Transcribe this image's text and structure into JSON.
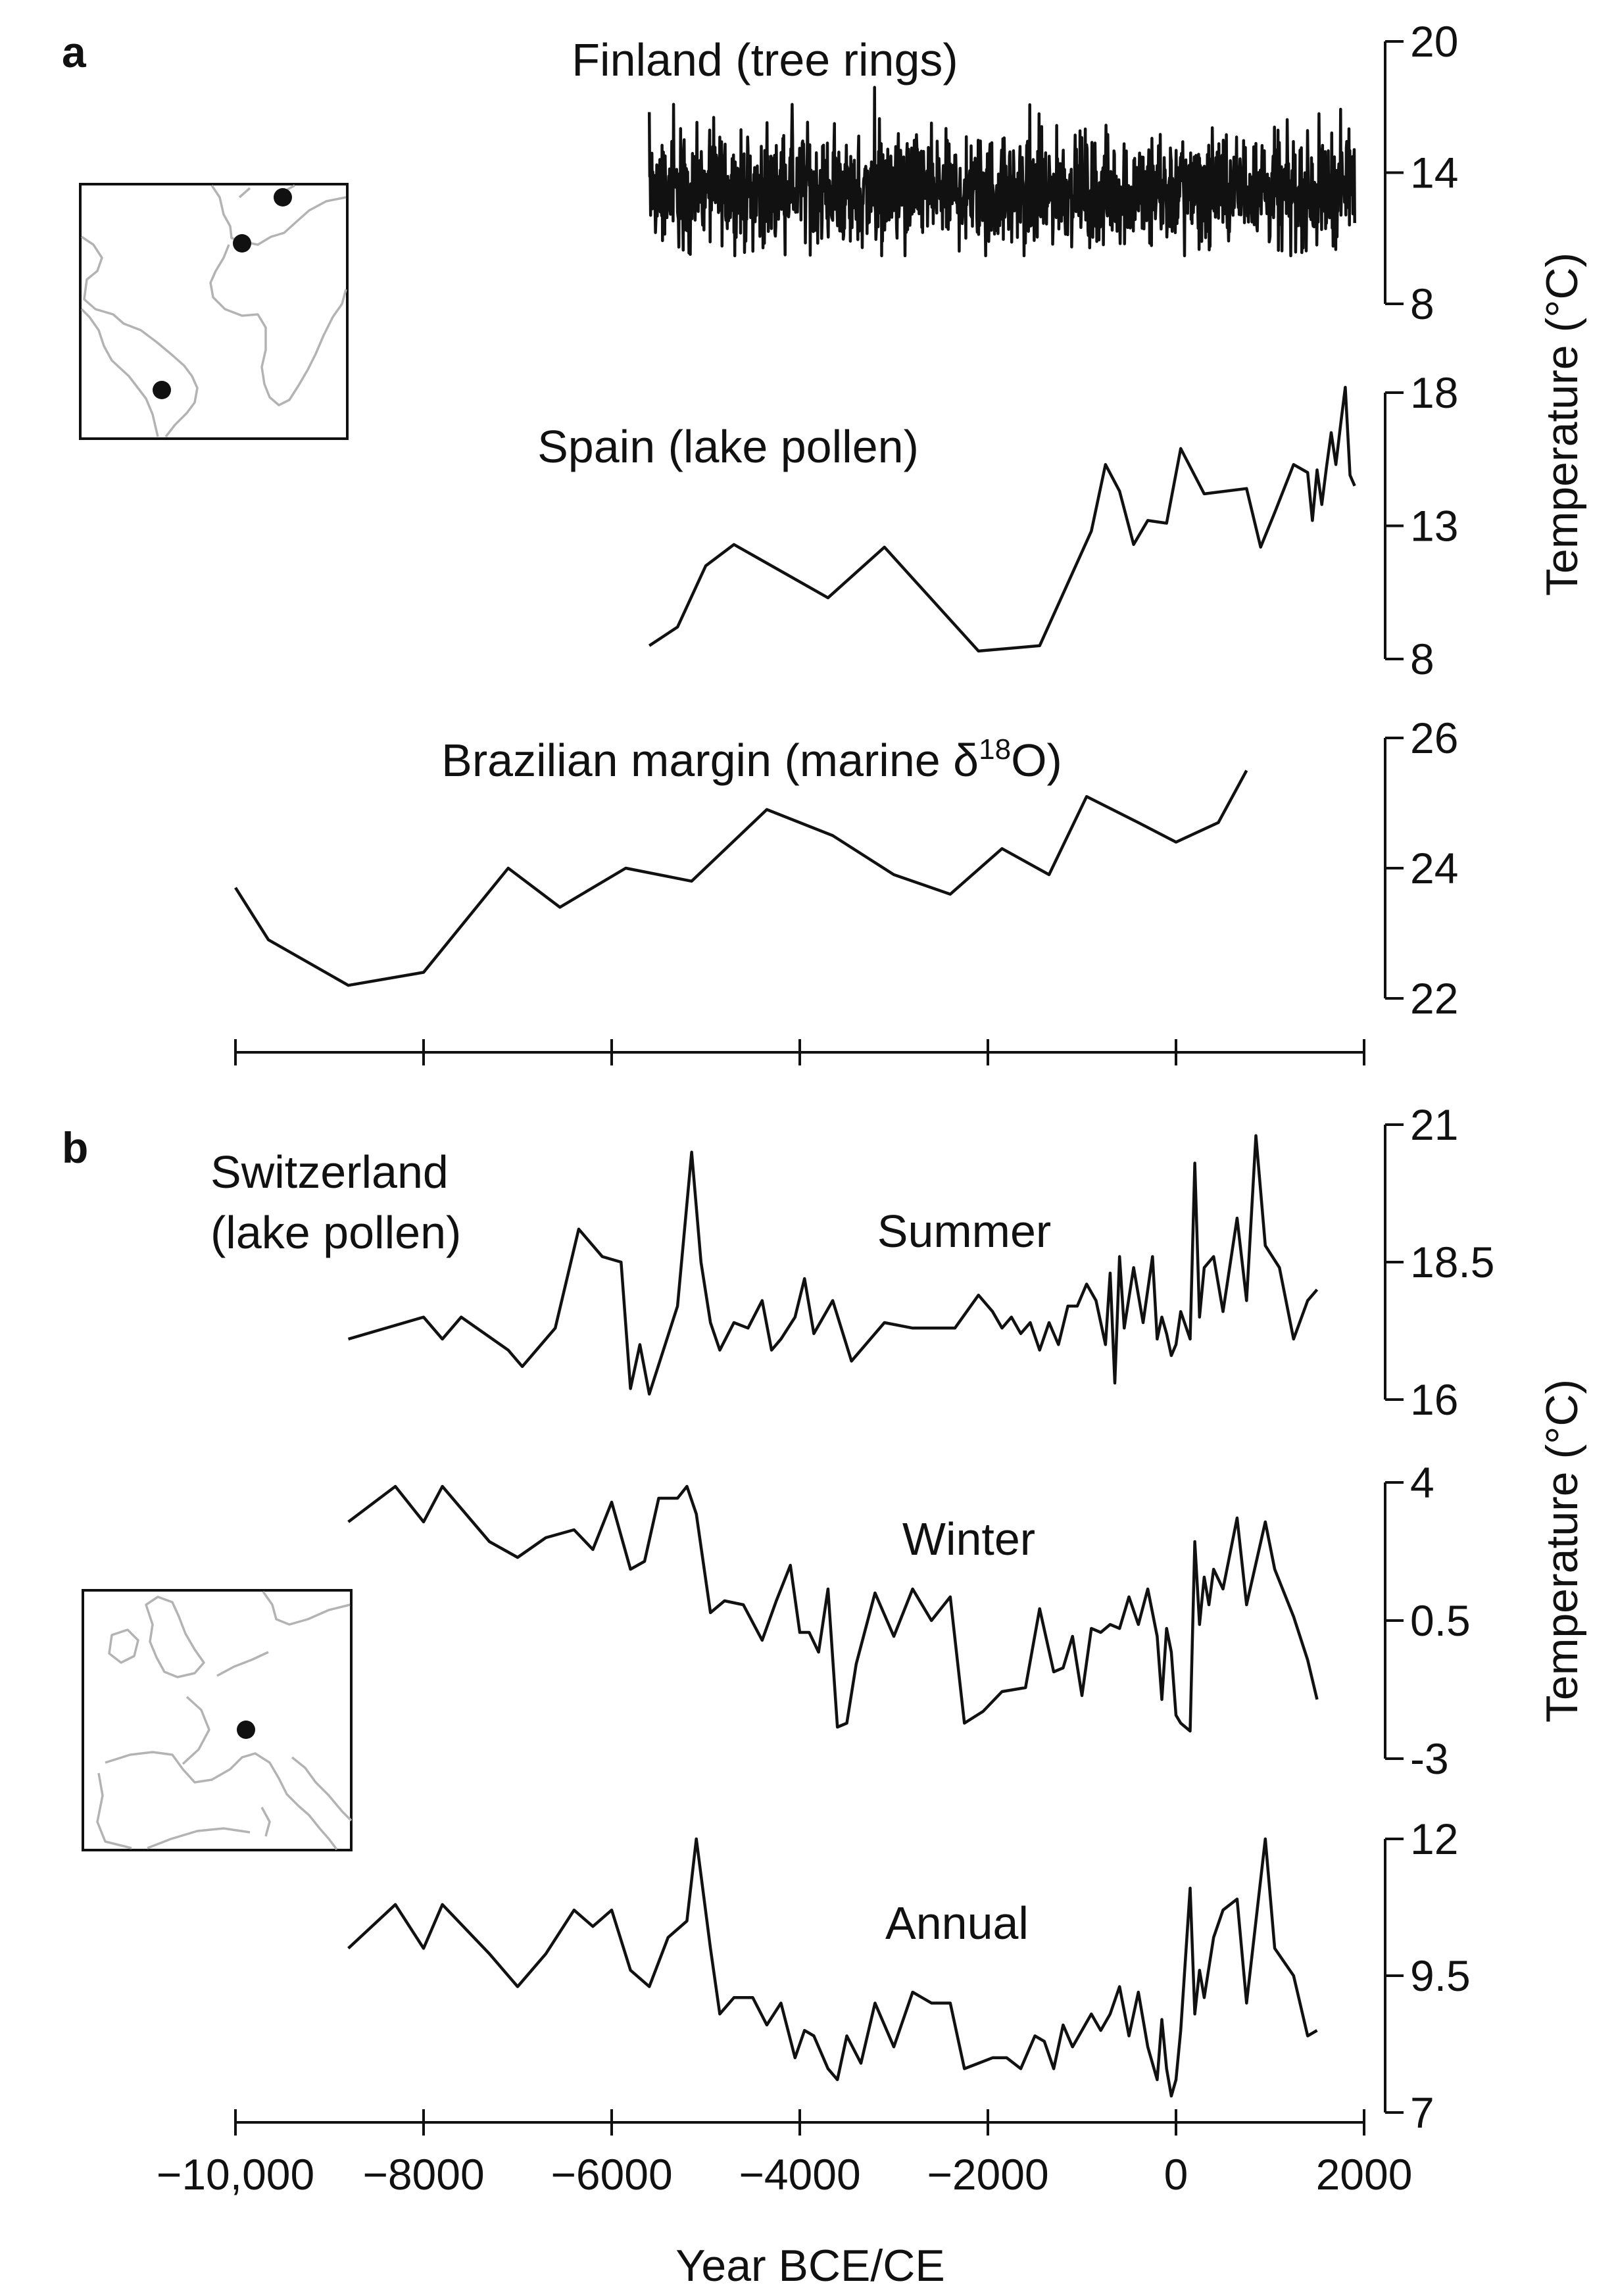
{
  "chart_data": {
    "type": "line",
    "x_axis": {
      "label": "Year BCE/CE",
      "range": [
        -10000,
        2000
      ],
      "ticks": [
        -10000,
        -8000,
        -6000,
        -4000,
        -2000,
        0,
        2000
      ],
      "tick_labels": [
        "−10,000",
        "−8000",
        "−6000",
        "−4000",
        "−2000",
        "0",
        "2000"
      ]
    },
    "panels": [
      {
        "letter": "a",
        "y_axis_label": "Temperature (°C)",
        "map": "South Atlantic / Europe / Africa locator map with three site markers",
        "series": [
          {
            "name": "Finland (tree rings)",
            "ylim": [
              8,
              20
            ],
            "ticks": [
              8,
              14,
              20
            ],
            "style": "high-frequency annual series, roughly 10.5 to 17.5 °C",
            "x": [
              -5600,
              -5200,
              -4800,
              -4400,
              -4000,
              -3600,
              -3200,
              -2800,
              -2400,
              -2000,
              -1600,
              -1200,
              -800,
              -400,
              0,
              400,
              800,
              1200,
              1600,
              1900
            ],
            "values": [
              13.2,
              13.0,
              13.3,
              13.1,
              13.4,
              13.2,
              13.0,
              13.3,
              13.1,
              13.2,
              13.0,
              13.3,
              13.2,
              13.1,
              13.4,
              13.2,
              13.3,
              13.1,
              13.2,
              13.3
            ]
          },
          {
            "name": "Spain (lake pollen)",
            "ylim": [
              8,
              18
            ],
            "ticks": [
              8,
              13,
              18
            ],
            "x": [
              -5600,
              -5300,
              -5000,
              -4700,
              -3700,
              -3100,
              -2100,
              -1450,
              -900,
              -750,
              -600,
              -450,
              -300,
              -100,
              50,
              300,
              750,
              900,
              1050,
              1250,
              1400,
              1450,
              1500,
              1550,
              1600,
              1650,
              1700,
              1750,
              1800,
              1850,
              1900
            ],
            "values": [
              8.5,
              9.2,
              11.5,
              12.3,
              10.3,
              12.2,
              8.3,
              8.5,
              12.8,
              15.3,
              14.3,
              12.3,
              13.2,
              13.1,
              15.9,
              14.2,
              14.4,
              12.2,
              13.5,
              15.3,
              15.0,
              13.2,
              15.1,
              13.8,
              15.2,
              16.5,
              15.3,
              16.8,
              18.2,
              14.9,
              14.5
            ]
          },
          {
            "name": "Brazilian margin (marine δ",
            "name_sup": "18",
            "name_end": "O)",
            "ylim": [
              22,
              26
            ],
            "ticks": [
              22,
              24,
              26
            ],
            "x": [
              -10000,
              -9650,
              -8800,
              -8000,
              -7100,
              -6550,
              -5850,
              -5150,
              -4350,
              -3650,
              -3000,
              -2400,
              -1850,
              -1350,
              -950,
              -400,
              0,
              450,
              750
            ],
            "values": [
              23.7,
              22.9,
              22.2,
              22.4,
              24.0,
              23.4,
              24.0,
              23.8,
              24.9,
              24.5,
              23.9,
              23.6,
              24.3,
              23.9,
              25.1,
              24.7,
              24.4,
              24.7,
              25.5
            ]
          }
        ]
      },
      {
        "letter": "b",
        "title": "Switzerland (lake pollen)",
        "title_line1": "Switzerland",
        "title_line2": "(lake pollen)",
        "y_axis_label": "Temperature (°C)",
        "map": "Western Europe locator map with one site marker",
        "series": [
          {
            "name": "Summer",
            "ylim": [
              16,
              21
            ],
            "ticks": [
              16,
              18.5,
              21
            ],
            "tick_labels": [
              "16",
              "18.5",
              "21"
            ],
            "x": [
              -8800,
              -8000,
              -7800,
              -7600,
              -7100,
              -6950,
              -6600,
              -6350,
              -6100,
              -5900,
              -5800,
              -5700,
              -5600,
              -5300,
              -5150,
              -5050,
              -4950,
              -4850,
              -4700,
              -4550,
              -4400,
              -4300,
              -4200,
              -4050,
              -3950,
              -3850,
              -3650,
              -3450,
              -3100,
              -2800,
              -2350,
              -2100,
              -1950,
              -1850,
              -1750,
              -1650,
              -1550,
              -1450,
              -1350,
              -1250,
              -1150,
              -1050,
              -950,
              -850,
              -750,
              -700,
              -650,
              -600,
              -550,
              -450,
              -350,
              -250,
              -200,
              -150,
              -100,
              -50,
              0,
              50,
              150,
              200,
              250,
              300,
              400,
              500,
              650,
              750,
              850,
              950,
              1100,
              1250,
              1400,
              1500
            ],
            "values": [
              17.1,
              17.5,
              17.1,
              17.5,
              16.9,
              16.6,
              17.3,
              19.1,
              18.6,
              18.5,
              16.2,
              17.0,
              16.1,
              17.7,
              20.5,
              18.5,
              17.4,
              16.9,
              17.4,
              17.3,
              17.8,
              16.9,
              17.1,
              17.5,
              18.2,
              17.2,
              17.8,
              16.7,
              17.4,
              17.3,
              17.3,
              17.9,
              17.6,
              17.3,
              17.5,
              17.2,
              17.4,
              16.9,
              17.4,
              17.0,
              17.7,
              17.7,
              18.1,
              17.8,
              17.0,
              18.3,
              16.3,
              18.6,
              17.3,
              18.4,
              17.4,
              18.6,
              17.1,
              17.5,
              17.2,
              16.8,
              17.0,
              17.6,
              17.1,
              20.3,
              17.5,
              18.4,
              18.6,
              17.6,
              19.3,
              17.8,
              20.8,
              18.8,
              18.4,
              17.1,
              17.8,
              18.0
            ]
          },
          {
            "name": "Winter",
            "ylim": [
              -3,
              4
            ],
            "ticks": [
              -3,
              0.5,
              4
            ],
            "tick_labels": [
              "-3",
              "0.5",
              "4"
            ],
            "x": [
              -8800,
              -8300,
              -8000,
              -7800,
              -7300,
              -7000,
              -6700,
              -6400,
              -6200,
              -6000,
              -5800,
              -5650,
              -5500,
              -5300,
              -5200,
              -5100,
              -4950,
              -4800,
              -4600,
              -4400,
              -4250,
              -4100,
              -4000,
              -3900,
              -3800,
              -3700,
              -3600,
              -3500,
              -3400,
              -3200,
              -3000,
              -2800,
              -2600,
              -2400,
              -2250,
              -2050,
              -1850,
              -1600,
              -1450,
              -1300,
              -1200,
              -1100,
              -1000,
              -900,
              -800,
              -700,
              -600,
              -500,
              -400,
              -300,
              -200,
              -150,
              -100,
              -50,
              0,
              50,
              150,
              200,
              250,
              300,
              350,
              400,
              500,
              650,
              750,
              950,
              1050,
              1250,
              1400,
              1500
            ],
            "values": [
              3.0,
              3.9,
              3.0,
              3.9,
              2.5,
              2.1,
              2.6,
              2.8,
              2.3,
              3.5,
              1.8,
              2.0,
              3.6,
              3.6,
              3.9,
              3.2,
              0.7,
              1.0,
              0.9,
              0.0,
              1.0,
              1.9,
              0.2,
              0.2,
              -0.3,
              1.3,
              -2.2,
              -2.1,
              -0.6,
              1.2,
              0.1,
              1.3,
              0.5,
              1.1,
              -2.1,
              -1.8,
              -1.3,
              -1.2,
              0.8,
              -0.8,
              -0.7,
              0.1,
              -1.4,
              0.3,
              0.2,
              0.4,
              0.3,
              1.1,
              0.4,
              1.3,
              0.1,
              -1.5,
              0.3,
              -0.3,
              -1.9,
              -2.1,
              -2.3,
              2.5,
              0.4,
              1.6,
              0.9,
              1.8,
              1.3,
              3.1,
              0.9,
              3.0,
              1.8,
              0.6,
              -0.5,
              -1.5
            ]
          },
          {
            "name": "Annual",
            "ylim": [
              7,
              12
            ],
            "ticks": [
              7,
              9.5,
              12
            ],
            "tick_labels": [
              "7",
              "9.5",
              "12"
            ],
            "x": [
              -8800,
              -8300,
              -8000,
              -7800,
              -7300,
              -7000,
              -6700,
              -6400,
              -6200,
              -6000,
              -5800,
              -5600,
              -5400,
              -5200,
              -5100,
              -4950,
              -4850,
              -4700,
              -4500,
              -4350,
              -4200,
              -4050,
              -3950,
              -3850,
              -3700,
              -3600,
              -3500,
              -3350,
              -3200,
              -3000,
              -2800,
              -2600,
              -2400,
              -2250,
              -2100,
              -1950,
              -1800,
              -1650,
              -1500,
              -1400,
              -1300,
              -1200,
              -1100,
              -1000,
              -900,
              -800,
              -700,
              -600,
              -500,
              -400,
              -300,
              -200,
              -150,
              -100,
              -50,
              0,
              50,
              150,
              200,
              250,
              300,
              400,
              500,
              650,
              750,
              950,
              1050,
              1250,
              1400,
              1500
            ],
            "values": [
              10.0,
              10.8,
              10.0,
              10.8,
              9.9,
              9.3,
              9.9,
              10.7,
              10.4,
              10.7,
              9.6,
              9.3,
              10.2,
              10.5,
              12.0,
              10.0,
              8.8,
              9.1,
              9.1,
              8.6,
              9.0,
              8.0,
              8.5,
              8.4,
              7.8,
              7.6,
              8.4,
              7.9,
              9.0,
              8.2,
              9.2,
              9.0,
              9.0,
              7.8,
              7.9,
              8.0,
              8.0,
              7.8,
              8.4,
              8.3,
              7.8,
              8.6,
              8.2,
              8.5,
              8.8,
              8.5,
              8.8,
              9.3,
              8.4,
              9.2,
              8.2,
              7.6,
              8.7,
              7.8,
              7.3,
              7.6,
              8.5,
              11.1,
              8.8,
              9.6,
              9.1,
              10.2,
              10.7,
              10.9,
              9.0,
              12.0,
              10.0,
              9.5,
              8.4,
              8.5
            ]
          }
        ]
      }
    ]
  }
}
